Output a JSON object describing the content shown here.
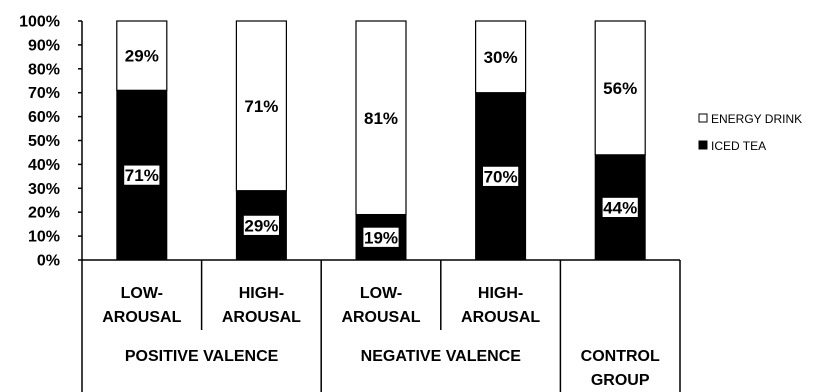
{
  "chart_data": {
    "type": "bar",
    "stacked": true,
    "percent": true,
    "categories": [
      {
        "line1": "LOW-",
        "line2": "AROUSAL",
        "group": "POSITIVE VALENCE"
      },
      {
        "line1": "HIGH-",
        "line2": "AROUSAL",
        "group": "POSITIVE VALENCE"
      },
      {
        "line1": "LOW-",
        "line2": "AROUSAL",
        "group": "NEGATIVE VALENCE"
      },
      {
        "line1": "HIGH-",
        "line2": "AROUSAL",
        "group": "NEGATIVE VALENCE"
      },
      {
        "line1": "",
        "line2": "",
        "group": "CONTROL GROUP"
      }
    ],
    "groups": [
      {
        "label": "POSITIVE VALENCE",
        "span": 2
      },
      {
        "label": "NEGATIVE VALENCE",
        "span": 2
      },
      {
        "label_line1": "CONTROL",
        "label_line2": "GROUP",
        "span": 1
      }
    ],
    "series": [
      {
        "name": "ICED TEA",
        "color": "#000000",
        "values": [
          71,
          29,
          19,
          70,
          44
        ],
        "labels": [
          "71%",
          "29%",
          "19%",
          "70%",
          "44%"
        ]
      },
      {
        "name": "ENERGY DRINK",
        "color": "#ffffff",
        "values": [
          29,
          71,
          81,
          30,
          56
        ],
        "labels": [
          "29%",
          "71%",
          "81%",
          "30%",
          "56%"
        ]
      }
    ],
    "yticks": [
      "0%",
      "10%",
      "20%",
      "30%",
      "40%",
      "50%",
      "60%",
      "70%",
      "80%",
      "90%",
      "100%"
    ],
    "ylim": [
      0,
      100
    ],
    "legend": {
      "position": "right",
      "entries": [
        "ENERGY DRINK",
        "ICED TEA"
      ]
    },
    "grid": false
  }
}
